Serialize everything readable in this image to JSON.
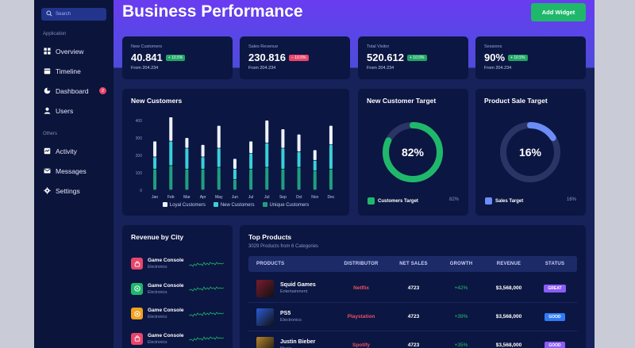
{
  "sidebar": {
    "search_placeholder": "Search",
    "sections": [
      {
        "label": "Application",
        "items": [
          {
            "label": "Overview",
            "icon": "grid-icon"
          },
          {
            "label": "Timeline",
            "icon": "calendar-icon"
          },
          {
            "label": "Dashboard",
            "icon": "chart-pie-icon",
            "badge": "2"
          },
          {
            "label": "Users",
            "icon": "user-icon"
          }
        ]
      },
      {
        "label": "Others",
        "items": [
          {
            "label": "Activity",
            "icon": "activity-icon"
          },
          {
            "label": "Messages",
            "icon": "mail-icon"
          },
          {
            "label": "Settings",
            "icon": "gear-icon"
          }
        ]
      }
    ]
  },
  "header": {
    "title": "Business Performance",
    "add_widget_label": "Add Widget"
  },
  "kpis": [
    {
      "label": "New Customers",
      "value": "40.841",
      "delta": "+ 10.5%",
      "trend": "up",
      "from": "From 204.234"
    },
    {
      "label": "Sales Revenue",
      "value": "230.816",
      "delta": "− 10.5%",
      "trend": "down",
      "from": "From 204.234"
    },
    {
      "label": "Total Visitor",
      "value": "520.612",
      "delta": "+ 10.5%",
      "trend": "up",
      "from": "From 204.234"
    },
    {
      "label": "Sessions",
      "value": "90%",
      "delta": "+ 10.5%",
      "trend": "up",
      "from": "From 204.234"
    }
  ],
  "chart_data": {
    "type": "bar",
    "title": "New Customers",
    "categories": [
      "Jan",
      "Feb",
      "Mar",
      "Apr",
      "May",
      "Jun",
      "Jul",
      "Jul",
      "Sep",
      "Oct",
      "Nov",
      "Dec"
    ],
    "yticks": [
      0,
      100,
      200,
      300,
      400
    ],
    "ylim": [
      0,
      400
    ],
    "stacked": true,
    "series": [
      {
        "name": "Unique Customers",
        "color": "#1f9f80",
        "values": [
          120,
          140,
          120,
          120,
          130,
          60,
          120,
          130,
          120,
          130,
          110,
          120
        ]
      },
      {
        "name": "New Customers",
        "color": "#3ad0d6",
        "values": [
          70,
          140,
          120,
          70,
          110,
          60,
          90,
          140,
          120,
          90,
          60,
          140
        ]
      },
      {
        "name": "Loyal Customers",
        "color": "#eef2ff",
        "values": [
          90,
          140,
          60,
          70,
          130,
          60,
          70,
          130,
          110,
          100,
          60,
          110
        ]
      }
    ],
    "legend_position": "bottom",
    "grid": false
  },
  "targets": [
    {
      "title": "New Customer Target",
      "value": "82%",
      "fraction": 0.82,
      "color": "#1fb86b",
      "legend": "Customers Target",
      "legend_value": "82%"
    },
    {
      "title": "Product Sale Target",
      "value": "16%",
      "fraction": 0.16,
      "color": "#6b8df5",
      "legend": "Sales Target",
      "legend_value": "16%"
    }
  ],
  "revenue_by_city": {
    "title": "Revenue by City",
    "items": [
      {
        "name": "Game Console",
        "sub": "Electronics",
        "color": "#e8456b",
        "icon": "bag-icon"
      },
      {
        "name": "Game Console",
        "sub": "Electronics",
        "color": "#1fb86b",
        "icon": "play-icon"
      },
      {
        "name": "Game Console",
        "sub": "Electronics",
        "color": "#f2a21d",
        "icon": "coin-icon"
      },
      {
        "name": "Game Console",
        "sub": "Electronics",
        "color": "#e8456b",
        "icon": "bag-icon"
      }
    ]
  },
  "top_products": {
    "title": "Top Products",
    "subtitle": "3029 Products from 6 Categories",
    "columns": [
      "PRODUCTS",
      "DISTRIBUTOR",
      "NET SALES",
      "GROWTH",
      "REVENUE",
      "STATUS"
    ],
    "rows": [
      {
        "name": "Squid Games",
        "category": "Entertainment",
        "distributor": "Netflix",
        "net_sales": "4723",
        "growth": "+42%",
        "revenue": "$3,568,000",
        "status": "GREAT",
        "status_color": "#8b5cf6",
        "thumb_color": "#7a1c2e"
      },
      {
        "name": "PS5",
        "category": "Electronics",
        "distributor": "Playstation",
        "net_sales": "4723",
        "growth": "+39%",
        "revenue": "$3,568,000",
        "status": "GOOD",
        "status_color": "#2f7cf6",
        "thumb_color": "#2b5bd6"
      },
      {
        "name": "Justin Bieber",
        "category": "Music",
        "distributor": "Spotify",
        "net_sales": "4723",
        "growth": "+35%",
        "revenue": "$3,568,000",
        "status": "GOOD",
        "status_color": "#8b5cf6",
        "thumb_color": "#b8842c"
      }
    ]
  }
}
